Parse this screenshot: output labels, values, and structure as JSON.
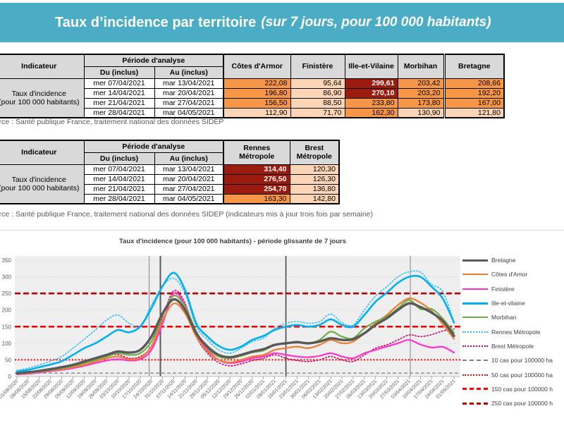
{
  "header": {
    "title": "Taux d’incidence par territoire",
    "subtitle": "(sur 7 jours, pour 100 000 habitants)"
  },
  "colors": {
    "banner": "#4BACC6",
    "cell_orange": "#F79646",
    "cell_peach": "#FBD5B5",
    "cell_darkred": "#9B1B0E",
    "plot_background": "#EFEFEF"
  },
  "table1": {
    "indicator_header": "Indicateur",
    "period_header": "Période d'analyse",
    "du_header": "Du (inclus)",
    "au_header": "Au (inclus)",
    "indicator_label": "Taux d'incidence\n(pour 100 000 habitants)",
    "columns": [
      "Côtes d'Armor",
      "Finistère",
      "Ille-et-Vilaine",
      "Morbihan",
      "Bretagne"
    ],
    "rows": [
      {
        "du": "mer 07/04/2021",
        "au": "mar 13/04/2021",
        "values": [
          "222,08",
          "95,64",
          "299,61",
          "203,42",
          "208,66"
        ],
        "styles": [
          "orange",
          "peach",
          "darkred",
          "orange",
          "orange"
        ]
      },
      {
        "du": "mer 14/04/2021",
        "au": "mar 20/04/2021",
        "values": [
          "196,80",
          "86,90",
          "270,10",
          "203,20",
          "192,20"
        ],
        "styles": [
          "orange",
          "peach",
          "darkred",
          "orange",
          "orange"
        ]
      },
      {
        "du": "mer 21/04/2021",
        "au": "mar 27/04/2021",
        "values": [
          "156,50",
          "88,50",
          "233,80",
          "173,80",
          "167,00"
        ],
        "styles": [
          "orange",
          "peach",
          "orange",
          "orange",
          "orange"
        ]
      },
      {
        "du": "mer 28/04/2021",
        "au": "mar 04/05/2021",
        "values": [
          "112,90",
          "71,70",
          "162,30",
          "130,90",
          "121,80"
        ],
        "styles": [
          "peach",
          "peach",
          "orange",
          "peach",
          "peach"
        ]
      }
    ],
    "source": "Source  : Santé publique France, traitement national des données SIDEP"
  },
  "table2": {
    "indicator_header": "Indicateur",
    "period_header": "Période d'analyse",
    "du_header": "Du (inclus)",
    "au_header": "Au (inclus)",
    "indicator_label": "Taux d'incidence\n(pour 100 000 habitants)",
    "columns": [
      "Rennes\nMétropole",
      "Brest\nMétropole"
    ],
    "rows": [
      {
        "du": "mer 07/04/2021",
        "au": "mar 13/04/2021",
        "values": [
          "314,40",
          "120,30"
        ],
        "styles": [
          "darkred",
          "peach"
        ]
      },
      {
        "du": "mer 14/04/2021",
        "au": "mar 20/04/2021",
        "values": [
          "276,50",
          "126,30"
        ],
        "styles": [
          "darkred",
          "peach"
        ]
      },
      {
        "du": "mer 21/04/2021",
        "au": "mar 27/04/2021",
        "values": [
          "254,70",
          "136,80"
        ],
        "styles": [
          "darkred",
          "peach"
        ]
      },
      {
        "du": "mer 28/04/2021",
        "au": "mar 04/05/2021",
        "values": [
          "163,30",
          "142,80"
        ],
        "styles": [
          "orange",
          "peach"
        ]
      }
    ],
    "source": "Source  : Santé publique France, traitement national des données SIDEP (indicateurs mis à jour trois fois par semaine)"
  },
  "chart_data": {
    "type": "line",
    "title": "Taux d'incidence (pour 100 000 habitants) - période glissante de 7 jours",
    "ylim": [
      0,
      350
    ],
    "y_ticks": [
      0,
      50,
      100,
      150,
      200,
      250,
      300,
      350
    ],
    "grid": true,
    "legend_position": "right",
    "categories": [
      "01/08/2020",
      "08/08/2020",
      "15/08/2020",
      "22/08/2020",
      "29/08/2020",
      "05/09/2020",
      "12/09/2020",
      "19/09/2020",
      "26/09/2020",
      "03/10/2020",
      "10/10/2020",
      "17/10/2020",
      "24/10/2020",
      "31/10/2020",
      "07/11/2020",
      "14/11/2020",
      "21/11/2020",
      "28/11/2020",
      "05/12/2020",
      "12/12/2020",
      "19/12/2020",
      "26/12/2020",
      "02/01/2021",
      "09/01/2021",
      "16/01/2021",
      "23/01/2021",
      "30/01/2021",
      "06/02/2021",
      "13/02/2021",
      "20/02/2021",
      "27/02/2021",
      "06/03/2021",
      "13/03/2021",
      "20/03/2021",
      "27/03/2021",
      "03/04/2021",
      "10/04/2021",
      "17/04/2021",
      "24/04/2021",
      "01/05/2021"
    ],
    "series": [
      {
        "name": "Bretagne",
        "color": "#595959",
        "width": 3.4,
        "style": "solid",
        "values": [
          10,
          13,
          17,
          22,
          28,
          35,
          45,
          55,
          65,
          75,
          72,
          80,
          120,
          190,
          232,
          200,
          130,
          90,
          65,
          58,
          65,
          75,
          82,
          95,
          100,
          103,
          100,
          105,
          115,
          110,
          112,
          130,
          155,
          175,
          200,
          220,
          209,
          192,
          167,
          122
        ]
      },
      {
        "name": "Côtes d'Amor",
        "color": "#ED7D31",
        "width": 2.2,
        "style": "solid",
        "values": [
          8,
          10,
          14,
          18,
          22,
          28,
          35,
          45,
          55,
          60,
          52,
          56,
          90,
          170,
          220,
          190,
          120,
          75,
          50,
          42,
          50,
          60,
          65,
          80,
          85,
          90,
          85,
          95,
          110,
          100,
          105,
          130,
          160,
          185,
          215,
          235,
          222,
          197,
          157,
          113
        ]
      },
      {
        "name": "Finistère",
        "color": "#FF33CC",
        "width": 2.2,
        "style": "solid",
        "values": [
          6,
          8,
          12,
          16,
          20,
          25,
          32,
          40,
          48,
          52,
          48,
          52,
          80,
          160,
          250,
          215,
          130,
          80,
          50,
          40,
          45,
          55,
          60,
          70,
          65,
          60,
          58,
          62,
          70,
          60,
          55,
          70,
          80,
          90,
          100,
          110,
          96,
          87,
          89,
          72
        ]
      },
      {
        "name": "Ille-et-vilaine",
        "color": "#00B0F0",
        "width": 2.6,
        "style": "solid",
        "values": [
          15,
          20,
          28,
          36,
          46,
          65,
          85,
          100,
          120,
          140,
          133,
          150,
          205,
          272,
          312,
          260,
          160,
          120,
          92,
          80,
          90,
          110,
          122,
          140,
          150,
          155,
          150,
          155,
          172,
          155,
          150,
          185,
          225,
          252,
          282,
          300,
          300,
          270,
          234,
          162
        ]
      },
      {
        "name": "Morbihan",
        "color": "#70AD47",
        "width": 2.2,
        "style": "solid",
        "values": [
          8,
          11,
          15,
          20,
          25,
          32,
          40,
          50,
          60,
          70,
          65,
          70,
          105,
          185,
          243,
          210,
          135,
          85,
          60,
          55,
          62,
          72,
          78,
          95,
          100,
          105,
          100,
          110,
          135,
          120,
          115,
          145,
          165,
          180,
          205,
          230,
          203,
          203,
          174,
          131
        ]
      },
      {
        "name": "Rennes Métropole",
        "color": "#33BFEF",
        "width": 1.6,
        "style": "dotted",
        "values": [
          18,
          25,
          35,
          46,
          60,
          85,
          112,
          140,
          170,
          185,
          160,
          152,
          215,
          272,
          295,
          250,
          150,
          110,
          80,
          70,
          85,
          105,
          115,
          145,
          160,
          165,
          160,
          165,
          188,
          162,
          155,
          200,
          242,
          270,
          300,
          315,
          314,
          277,
          255,
          163
        ]
      },
      {
        "name": "Brest Métropole",
        "color": "#CC0066",
        "width": 1.6,
        "style": "dotted",
        "values": [
          8,
          10,
          15,
          20,
          28,
          36,
          45,
          55,
          62,
          66,
          55,
          60,
          92,
          180,
          258,
          220,
          120,
          70,
          42,
          32,
          38,
          48,
          55,
          65,
          55,
          48,
          45,
          50,
          60,
          50,
          45,
          65,
          85,
          95,
          110,
          125,
          120,
          126,
          137,
          143
        ]
      }
    ],
    "thresholds": [
      {
        "label": "10 cas pour 100000 ha",
        "value": 10,
        "color": "#7F7F7F",
        "dash": "5,3",
        "width": 1.3,
        "legend_style": "dash-gray"
      },
      {
        "label": "50 cas pour 100000 ha",
        "value": 50,
        "color": "#FF0000",
        "dash": "2,2.5",
        "width": 2,
        "legend_style": "dot-red"
      },
      {
        "label": "150 cas pour 100000 h",
        "value": 150,
        "color": "#FF0000",
        "dash": "8,4",
        "width": 2.6,
        "legend_style": "dash-red"
      },
      {
        "label": "250 cas pour 100000 h",
        "value": 250,
        "color": "#C00000",
        "dash": "8,4",
        "width": 2.6,
        "legend_style": "dash-darkred"
      }
    ],
    "vertical_markers": [
      {
        "x_index": 11.8,
        "color": "#808080",
        "width": 1
      },
      {
        "x_index": 12.8,
        "color": "#595959",
        "width": 2
      },
      {
        "x_index": 24.0,
        "color": "#404040",
        "width": 1.5
      },
      {
        "x_index": 35.1,
        "color": "#808080",
        "width": 1
      }
    ]
  }
}
